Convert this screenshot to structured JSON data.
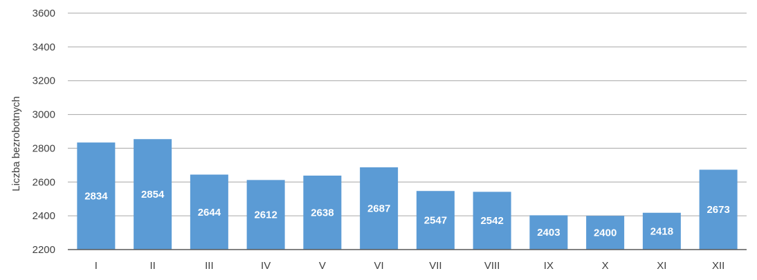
{
  "chart_data": {
    "type": "bar",
    "categories": [
      "I",
      "II",
      "III",
      "IV",
      "V",
      "VI",
      "VII",
      "VIII",
      "IX",
      "X",
      "XI",
      "XII"
    ],
    "values": [
      2834,
      2854,
      2644,
      2612,
      2638,
      2687,
      2547,
      2542,
      2403,
      2400,
      2418,
      2673
    ],
    "ylabel": "Liczba bezrobotnych",
    "ylim": [
      2200,
      3600
    ],
    "yticks": [
      2200,
      2400,
      2600,
      2800,
      3000,
      3200,
      3400,
      3600
    ],
    "grid": true,
    "data_labels": true,
    "colors": {
      "bar": "#5b9bd5",
      "grid": "#a6a6a6",
      "axis": "#595959",
      "text": "#404040",
      "label": "#ffffff"
    }
  }
}
